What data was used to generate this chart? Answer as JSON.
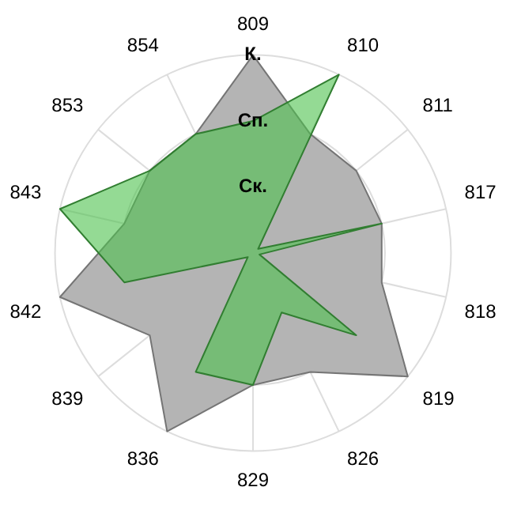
{
  "chart_data": {
    "type": "radar",
    "categories": [
      "809",
      "810",
      "811",
      "817",
      "818",
      "819",
      "826",
      "829",
      "836",
      "839",
      "842",
      "843",
      "853",
      "854"
    ],
    "ylim": [
      0,
      3
    ],
    "yticks": [
      {
        "value": 1,
        "label": "Ск."
      },
      {
        "value": 2,
        "label": "Сп."
      },
      {
        "value": 3,
        "label": "К."
      }
    ],
    "grid": true,
    "legend": false,
    "marker": "none",
    "series": [
      {
        "color": "#b4b4b4",
        "values": [
          3,
          2,
          2,
          2,
          2,
          3,
          2,
          2,
          3,
          2,
          3,
          2,
          2,
          2
        ]
      },
      {
        "color": "#4cc24c",
        "values": [
          2,
          3,
          0.1,
          2,
          0.1,
          2,
          1,
          2,
          2,
          0.1,
          2,
          3,
          2,
          2
        ]
      }
    ]
  }
}
